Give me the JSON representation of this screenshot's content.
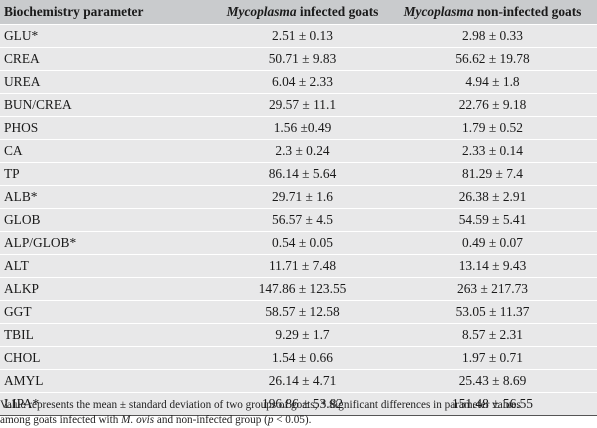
{
  "table": {
    "headers": {
      "parameter": "Biochemistry parameter",
      "infected_italic": "Mycoplasma",
      "infected_rest": " infected goats",
      "noninfected_italic": "Mycoplasma",
      "noninfected_rest": " non-infected goats"
    },
    "rows": [
      {
        "param": "GLU*",
        "infected": "2.51 ± 0.13",
        "noninfected": "2.98 ± 0.33"
      },
      {
        "param": "CREA",
        "infected": "50.71 ± 9.83",
        "noninfected": "56.62 ± 19.78"
      },
      {
        "param": "UREA",
        "infected": "6.04 ± 2.33",
        "noninfected": "4.94 ± 1.8"
      },
      {
        "param": "BUN/CREA",
        "infected": "29.57 ± 11.1",
        "noninfected": "22.76 ± 9.18"
      },
      {
        "param": "PHOS",
        "infected": "1.56 ±0.49",
        "noninfected": "1.79 ± 0.52"
      },
      {
        "param": "CA",
        "infected": "2.3 ± 0.24",
        "noninfected": "2.33 ± 0.14"
      },
      {
        "param": "TP",
        "infected": "86.14 ± 5.64",
        "noninfected": "81.29 ± 7.4"
      },
      {
        "param": "ALB*",
        "infected": "29.71 ± 1.6",
        "noninfected": "26.38 ± 2.91"
      },
      {
        "param": "GLOB",
        "infected": "56.57 ± 4.5",
        "noninfected": "54.59 ± 5.41"
      },
      {
        "param": "ALP/GLOB*",
        "infected": "0.54 ± 0.05",
        "noninfected": "0.49 ± 0.07"
      },
      {
        "param": "ALT",
        "infected": "11.71 ± 7.48",
        "noninfected": "13.14 ± 9.43"
      },
      {
        "param": "ALKP",
        "infected": "147.86 ± 123.55",
        "noninfected": "263 ± 217.73"
      },
      {
        "param": "GGT",
        "infected": "58.57 ± 12.58",
        "noninfected": "53.05 ± 11.37"
      },
      {
        "param": "TBIL",
        "infected": "9.29 ± 1.7",
        "noninfected": "8.57 ± 2.31"
      },
      {
        "param": "CHOL",
        "infected": "1.54 ± 0.66",
        "noninfected": "1.97 ± 0.71"
      },
      {
        "param": "AMYL",
        "infected": "26.14 ± 4.71",
        "noninfected": "25.43 ± 8.69"
      },
      {
        "param": "LIPA*",
        "infected": "196.86 ± 53.82",
        "noninfected": "151.48 ± 56.55"
      }
    ]
  },
  "footnote": {
    "line1": "Value represents the mean ± standard deviation of two groups of goats; * Significant differences in parameter values",
    "line2_a": "among goats infected with ",
    "line2_species": "M. ovis",
    "line2_b": " and non-infected group (",
    "line2_p": "p",
    "line2_c": " < 0.05)."
  }
}
